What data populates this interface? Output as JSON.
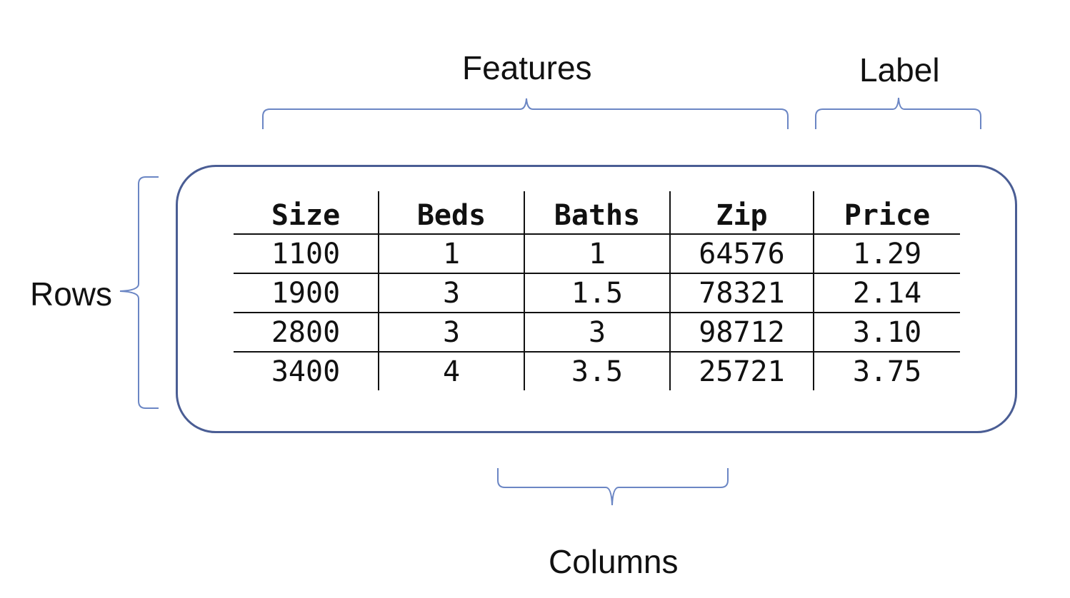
{
  "labels": {
    "features": "Features",
    "label": "Label",
    "rows": "Rows",
    "columns": "Columns"
  },
  "table": {
    "headers": [
      "Size",
      "Beds",
      "Baths",
      "Zip",
      "Price"
    ],
    "rows": [
      [
        "1100",
        "1",
        "1",
        "64576",
        "1.29"
      ],
      [
        "1900",
        "3",
        "1.5",
        "78321",
        "2.14"
      ],
      [
        "2800",
        "3",
        "3",
        "98712",
        "3.10"
      ],
      [
        "3400",
        "4",
        "3.5",
        "25721",
        "3.75"
      ]
    ]
  },
  "colors": {
    "brace": "#6b86c4",
    "box_border": "#4a5d94",
    "text": "#111111"
  }
}
